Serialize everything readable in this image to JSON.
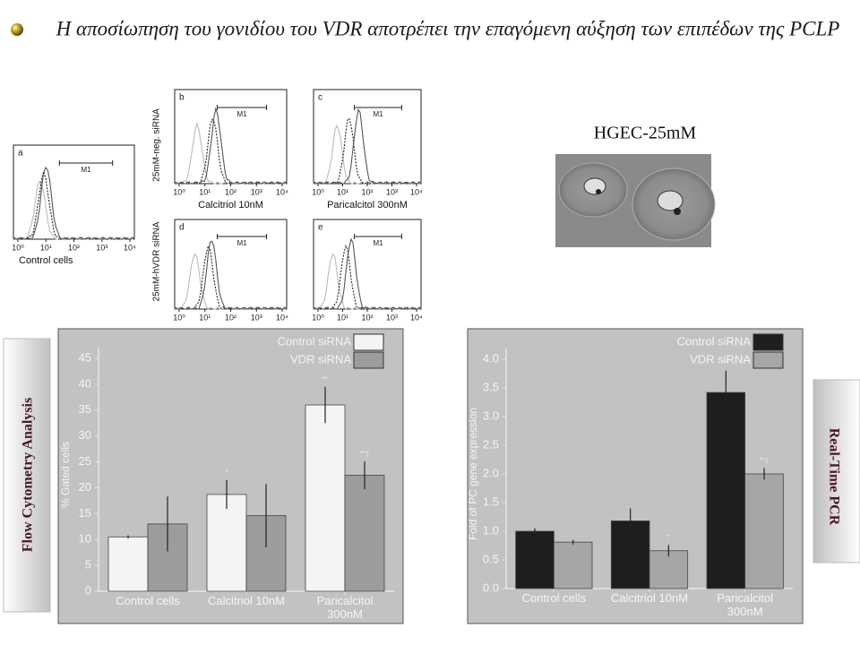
{
  "title": "Η αποσίωπηση του γονιδίου του VDR αποτρέπει την επαγόμενη αύξηση των επιπέδων της PCLP",
  "image_label": "HGEC-25mM",
  "side_labels": {
    "left": "Flow Cytometry Analysis",
    "right": "Real-Time PCR"
  },
  "flow_panels": {
    "row_labels": [
      "25mM-neg. siRNA",
      "25mM-hVDR siRNA"
    ],
    "gate_label": "M1",
    "x_tick_labels": [
      "10⁰",
      "10¹",
      "10²",
      "10³",
      "10⁴"
    ],
    "panels": [
      {
        "letter": "a",
        "caption": "Control cells"
      },
      {
        "letter": "b",
        "caption": "Calcitriol 10nM"
      },
      {
        "letter": "c",
        "caption": "Paricalcitol 300nM"
      },
      {
        "letter": "d"
      },
      {
        "letter": "e"
      }
    ]
  },
  "chart_data": [
    {
      "type": "bar",
      "y_label": "% Gated cells",
      "categories": [
        "Control cells",
        "Calcitriol 10nM",
        "Paricalcitol 300nM"
      ],
      "series": [
        {
          "name": "Control siRNA",
          "color": "#f4f4f4",
          "values": [
            10.5,
            18.7,
            36
          ],
          "errors": [
            0.3,
            2.8,
            3.5
          ],
          "significance": [
            null,
            "*",
            "**"
          ]
        },
        {
          "name": "VDR siRNA",
          "color": "#9c9c9c",
          "values": [
            13,
            14.6,
            22.4
          ],
          "errors": [
            5.3,
            6.1,
            2.7
          ],
          "significance": [
            null,
            null,
            "**‡"
          ]
        }
      ],
      "ylim": [
        0,
        45
      ],
      "yticks": [
        0,
        5,
        10,
        15,
        20,
        25,
        30,
        35,
        40,
        45
      ],
      "legend": "upper right"
    },
    {
      "type": "bar",
      "y_label": "Fold of PC gene expression",
      "categories": [
        "Control cells",
        "Calcitriol 10nM",
        "Paricalcitol 300nM"
      ],
      "series": [
        {
          "name": "Control siRNA",
          "color": "#1e1e1e",
          "values": [
            1.0,
            1.18,
            3.42
          ],
          "errors": [
            0.05,
            0.22,
            0.38
          ],
          "significance": [
            null,
            null,
            "**"
          ]
        },
        {
          "name": "VDR siRNA",
          "color": "#a6a6a6",
          "values": [
            0.81,
            0.66,
            2.0
          ],
          "errors": [
            0.04,
            0.1,
            0.1
          ],
          "significance": [
            null,
            "*",
            "**‡"
          ]
        }
      ],
      "ylim": [
        0,
        4.0
      ],
      "yticks": [
        {
          "value": 0,
          "label": "0.0"
        },
        {
          "value": 0.5,
          "label": "0.5"
        },
        {
          "value": 1,
          "label": "1.0"
        },
        {
          "value": 1.5,
          "label": "1.5"
        },
        {
          "value": 2,
          "label": "2.0"
        },
        {
          "value": 2.5,
          "label": "2.5"
        },
        {
          "value": 3,
          "label": "3.0"
        },
        {
          "value": 3.5,
          "label": "3.5"
        },
        {
          "value": 4,
          "label": "4.0"
        }
      ],
      "legend": "upper right"
    }
  ]
}
